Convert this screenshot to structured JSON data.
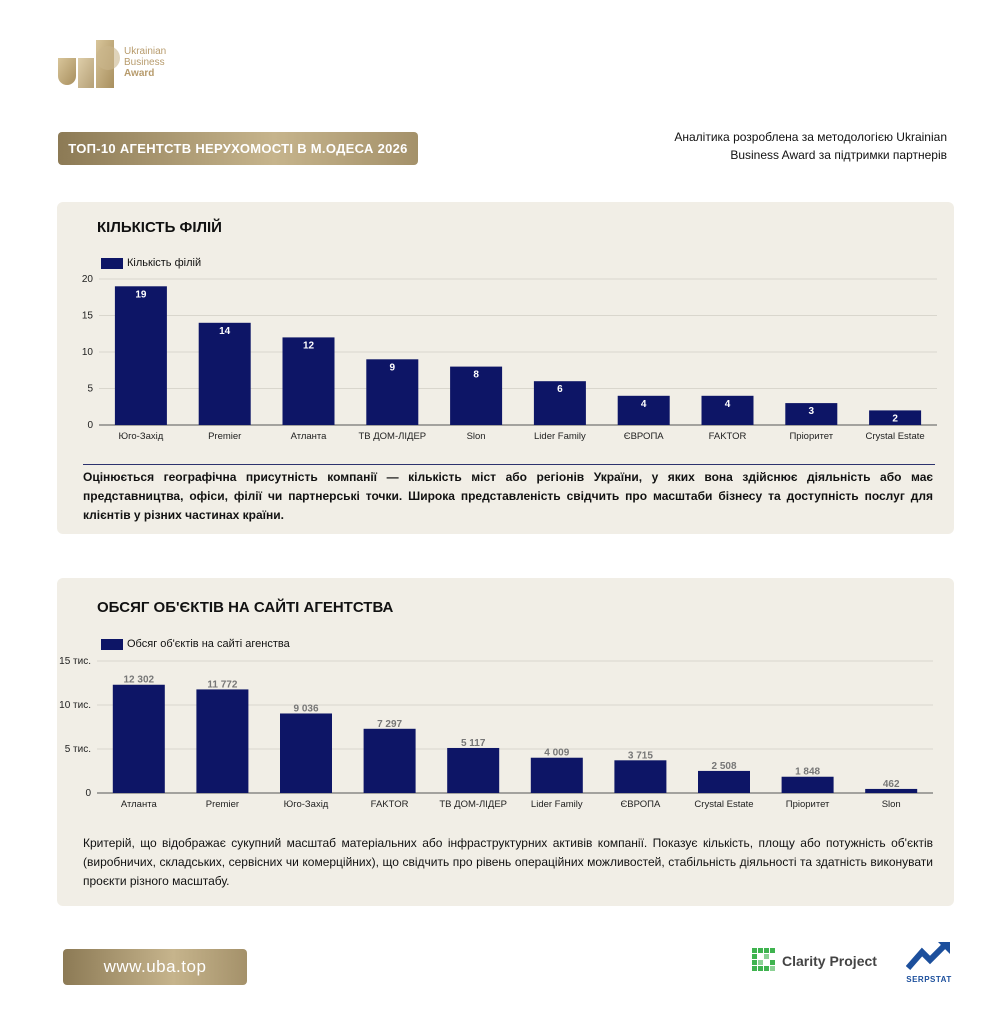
{
  "header": {
    "logo_line1": "Ukrainian",
    "logo_line2": "Business",
    "logo_line3": "Award",
    "title": "ТОП-10 АГЕНТСТВ НЕРУХОМОСТІ В М.ОДЕСА 2026",
    "analytics_line1": "Аналітика розроблена за методологією Ukrainian",
    "analytics_line2": "Business Award за підтримки партнерів"
  },
  "section1": {
    "title": "КІЛЬКІСТЬ ФІЛІЙ",
    "description": "Оцінюється географічна присутність компанії — кількість міст або регіонів України, у яких вона здійснює діяльність або має представництва, офіси, філії чи партнерські точки. Широка представленість свідчить про масштаби бізнесу та доступність послуг для клієнтів у різних частинах країни."
  },
  "section2": {
    "title": "ОБСЯГ ОБ'ЄКТІВ НА САЙТІ АГЕНТСТВА",
    "description": "Критерій, що відображає сукупний масштаб матеріальних або інфраструктурних активів компанії. Показує кількість, площу або потужність об'єктів (виробничих, складських, сервісних чи комерційних), що свідчить про рівень операційних можливостей, стабільність діяльності та здатність виконувати проєкти різного масштабу."
  },
  "footer": {
    "site": "www.uba.top",
    "partner1": "Clarity Project",
    "partner2": "SERPSTAT"
  },
  "colors": {
    "bar": "#0d1566",
    "gold": "#b79b6c",
    "card": "#f1eee6"
  },
  "chart_data": [
    {
      "type": "bar",
      "legend": "Кількість філій",
      "categories": [
        "Юго-Захід",
        "Premier",
        "Атланта",
        "ТВ ДОМ-ЛІДЕР",
        "Slon",
        "Lider Family",
        "ЄВРОПА",
        "FAKTOR",
        "Пріоритет",
        "Crystal Estate"
      ],
      "values": [
        19,
        14,
        12,
        9,
        8,
        6,
        4,
        4,
        3,
        2
      ],
      "value_labels": [
        "19",
        "14",
        "12",
        "9",
        "8",
        "6",
        "4",
        "4",
        "3",
        "2"
      ],
      "ylim": [
        0,
        20
      ],
      "yticks": [
        0,
        5,
        10,
        15,
        20
      ],
      "ytick_labels": [
        "0",
        "5",
        "10",
        "15",
        "20"
      ],
      "grid": true,
      "legend_position": "top-left"
    },
    {
      "type": "bar",
      "legend": "Обсяг об'єктів на сайті агенства",
      "categories": [
        "Атланта",
        "Premier",
        "Юго-Захід",
        "FAKTOR",
        "ТВ ДОМ-ЛІДЕР",
        "Lider Family",
        "ЄВРОПА",
        "Crystal Estate",
        "Пріоритет",
        "Slon"
      ],
      "values": [
        12302,
        11772,
        9036,
        7297,
        5117,
        4009,
        3715,
        2508,
        1848,
        462
      ],
      "value_labels": [
        "12 302",
        "11 772",
        "9 036",
        "7 297",
        "5 117",
        "4 009",
        "3 715",
        "2 508",
        "1 848",
        "462"
      ],
      "ylim": [
        0,
        15000
      ],
      "yticks": [
        0,
        5000,
        10000,
        15000
      ],
      "ytick_labels": [
        "0",
        "5 тис.",
        "10 тис.",
        "15 тис."
      ],
      "grid": true,
      "legend_position": "top-left"
    }
  ]
}
